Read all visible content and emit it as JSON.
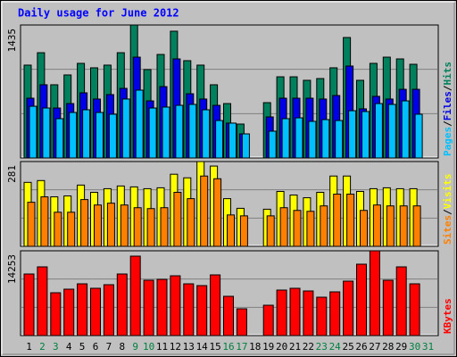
{
  "chart_data": {
    "type": "bar",
    "title": "Daily usage for June 2012",
    "categories": [
      "1",
      "2",
      "3",
      "4",
      "5",
      "6",
      "7",
      "8",
      "9",
      "10",
      "11",
      "12",
      "13",
      "14",
      "15",
      "16",
      "17",
      "18",
      "19",
      "20",
      "21",
      "22",
      "23",
      "24",
      "25",
      "26",
      "27",
      "28",
      "29",
      "30",
      "31"
    ],
    "label_colors": [
      "#000000",
      "#008040",
      "#008040",
      "#000000",
      "#000000",
      "#000000",
      "#000000",
      "#000000",
      "#008040",
      "#008040",
      "#000000",
      "#000000",
      "#000000",
      "#000000",
      "#000000",
      "#008040",
      "#008040",
      "#000000",
      "#000000",
      "#000000",
      "#000000",
      "#000000",
      "#008040",
      "#008040",
      "#000000",
      "#000000",
      "#000000",
      "#000000",
      "#000000",
      "#008040",
      "#008040"
    ],
    "legend_separator": "/",
    "panels": [
      {
        "ylim": [
          0,
          1435
        ],
        "yticks": [
          1435
        ],
        "series": [
          {
            "name": "Hits",
            "color": "#00805c",
            "values": [
              1002,
              1136,
              790,
              896,
              1021,
              973,
              1002,
              1136,
              1435,
              954,
              1117,
              1368,
              1050,
              1002,
              790,
              587,
              366,
              null,
              597,
              876,
              876,
              838,
              857,
              973,
              1300,
              838,
              1021,
              1088,
              1069,
              1011,
              null
            ]
          },
          {
            "name": "Files",
            "color": "#0000e6",
            "values": [
              645,
              790,
              539,
              587,
              703,
              636,
              684,
              751,
              1088,
              616,
              770,
              1069,
              693,
              636,
              568,
              376,
              260,
              null,
              443,
              645,
              645,
              645,
              636,
              674,
              992,
              530,
              665,
              636,
              741,
              741,
              null
            ]
          },
          {
            "name": "Pages",
            "color": "#00c0ff",
            "values": [
              558,
              539,
              424,
              491,
              520,
              491,
              472,
              636,
              732,
              539,
              549,
              568,
              578,
              520,
              404,
              376,
              260,
              null,
              289,
              424,
              433,
              395,
              414,
              404,
              510,
              501,
              587,
              578,
              616,
              472,
              null
            ]
          }
        ]
      },
      {
        "ylim": [
          0,
          281
        ],
        "yticks": [
          281
        ],
        "series": [
          {
            "name": "Visits",
            "color": "#ffff00",
            "values": [
              212,
              218,
              164,
              167,
              203,
              179,
              191,
              200,
              197,
              191,
              194,
              239,
              227,
              281,
              266,
              158,
              126,
              null,
              123,
              182,
              170,
              161,
              179,
              233,
              233,
              182,
              191,
              194,
              191,
              191,
              null
            ]
          },
          {
            "name": "Sites",
            "color": "#ff8000",
            "values": [
              146,
              164,
              113,
              113,
              155,
              137,
              143,
              137,
              128,
              125,
              128,
              179,
              158,
              233,
              224,
              104,
              101,
              null,
              101,
              128,
              119,
              116,
              134,
              173,
              173,
              119,
              137,
              134,
              134,
              134,
              null
            ]
          }
        ]
      },
      {
        "ylim": [
          0,
          14253
        ],
        "yticks": [
          14253
        ],
        "series": [
          {
            "name": "KBytes",
            "color": "#ff0000",
            "values": [
              10352,
              11552,
              7201,
              7801,
              8702,
              7951,
              8552,
              10352,
              13353,
              9302,
              9452,
              10052,
              8702,
              8402,
              10202,
              6601,
              4501,
              null,
              5101,
              7651,
              7951,
              7501,
              6451,
              7351,
              9152,
              12002,
              14253,
              9302,
              11552,
              8702,
              null
            ]
          }
        ]
      }
    ]
  }
}
